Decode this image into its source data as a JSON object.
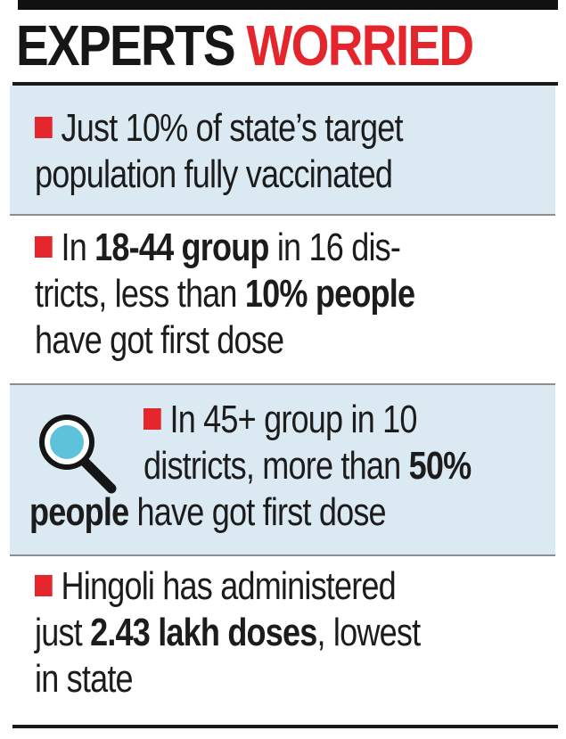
{
  "title": {
    "part1": "EXPERTS",
    "part2": "WORRIED"
  },
  "colors": {
    "accent": "#e4262c",
    "panel_tint": "#dbe9f2",
    "text": "#1c1c1c"
  },
  "items": [
    {
      "line1": "Just 10% of state’s target",
      "line2": "population fully vaccinated"
    },
    {
      "l1a": "In ",
      "l1b": "18-44 group",
      "l1c": " in 16 dis-",
      "l2a": "tricts, less than ",
      "l2b": "10% people",
      "l3": "have got first dose"
    },
    {
      "icon": "magnifier-icon",
      "l1": "In 45+ group in 10",
      "l2a": "districts, more than ",
      "l2b": "50%",
      "l3a": "people",
      "l3b": " have got first dose"
    },
    {
      "l1": "Hingoli has administered",
      "l2a": "just ",
      "l2b": "2.43 lakh doses",
      "l2c": ", lowest",
      "l3": "in state"
    }
  ]
}
